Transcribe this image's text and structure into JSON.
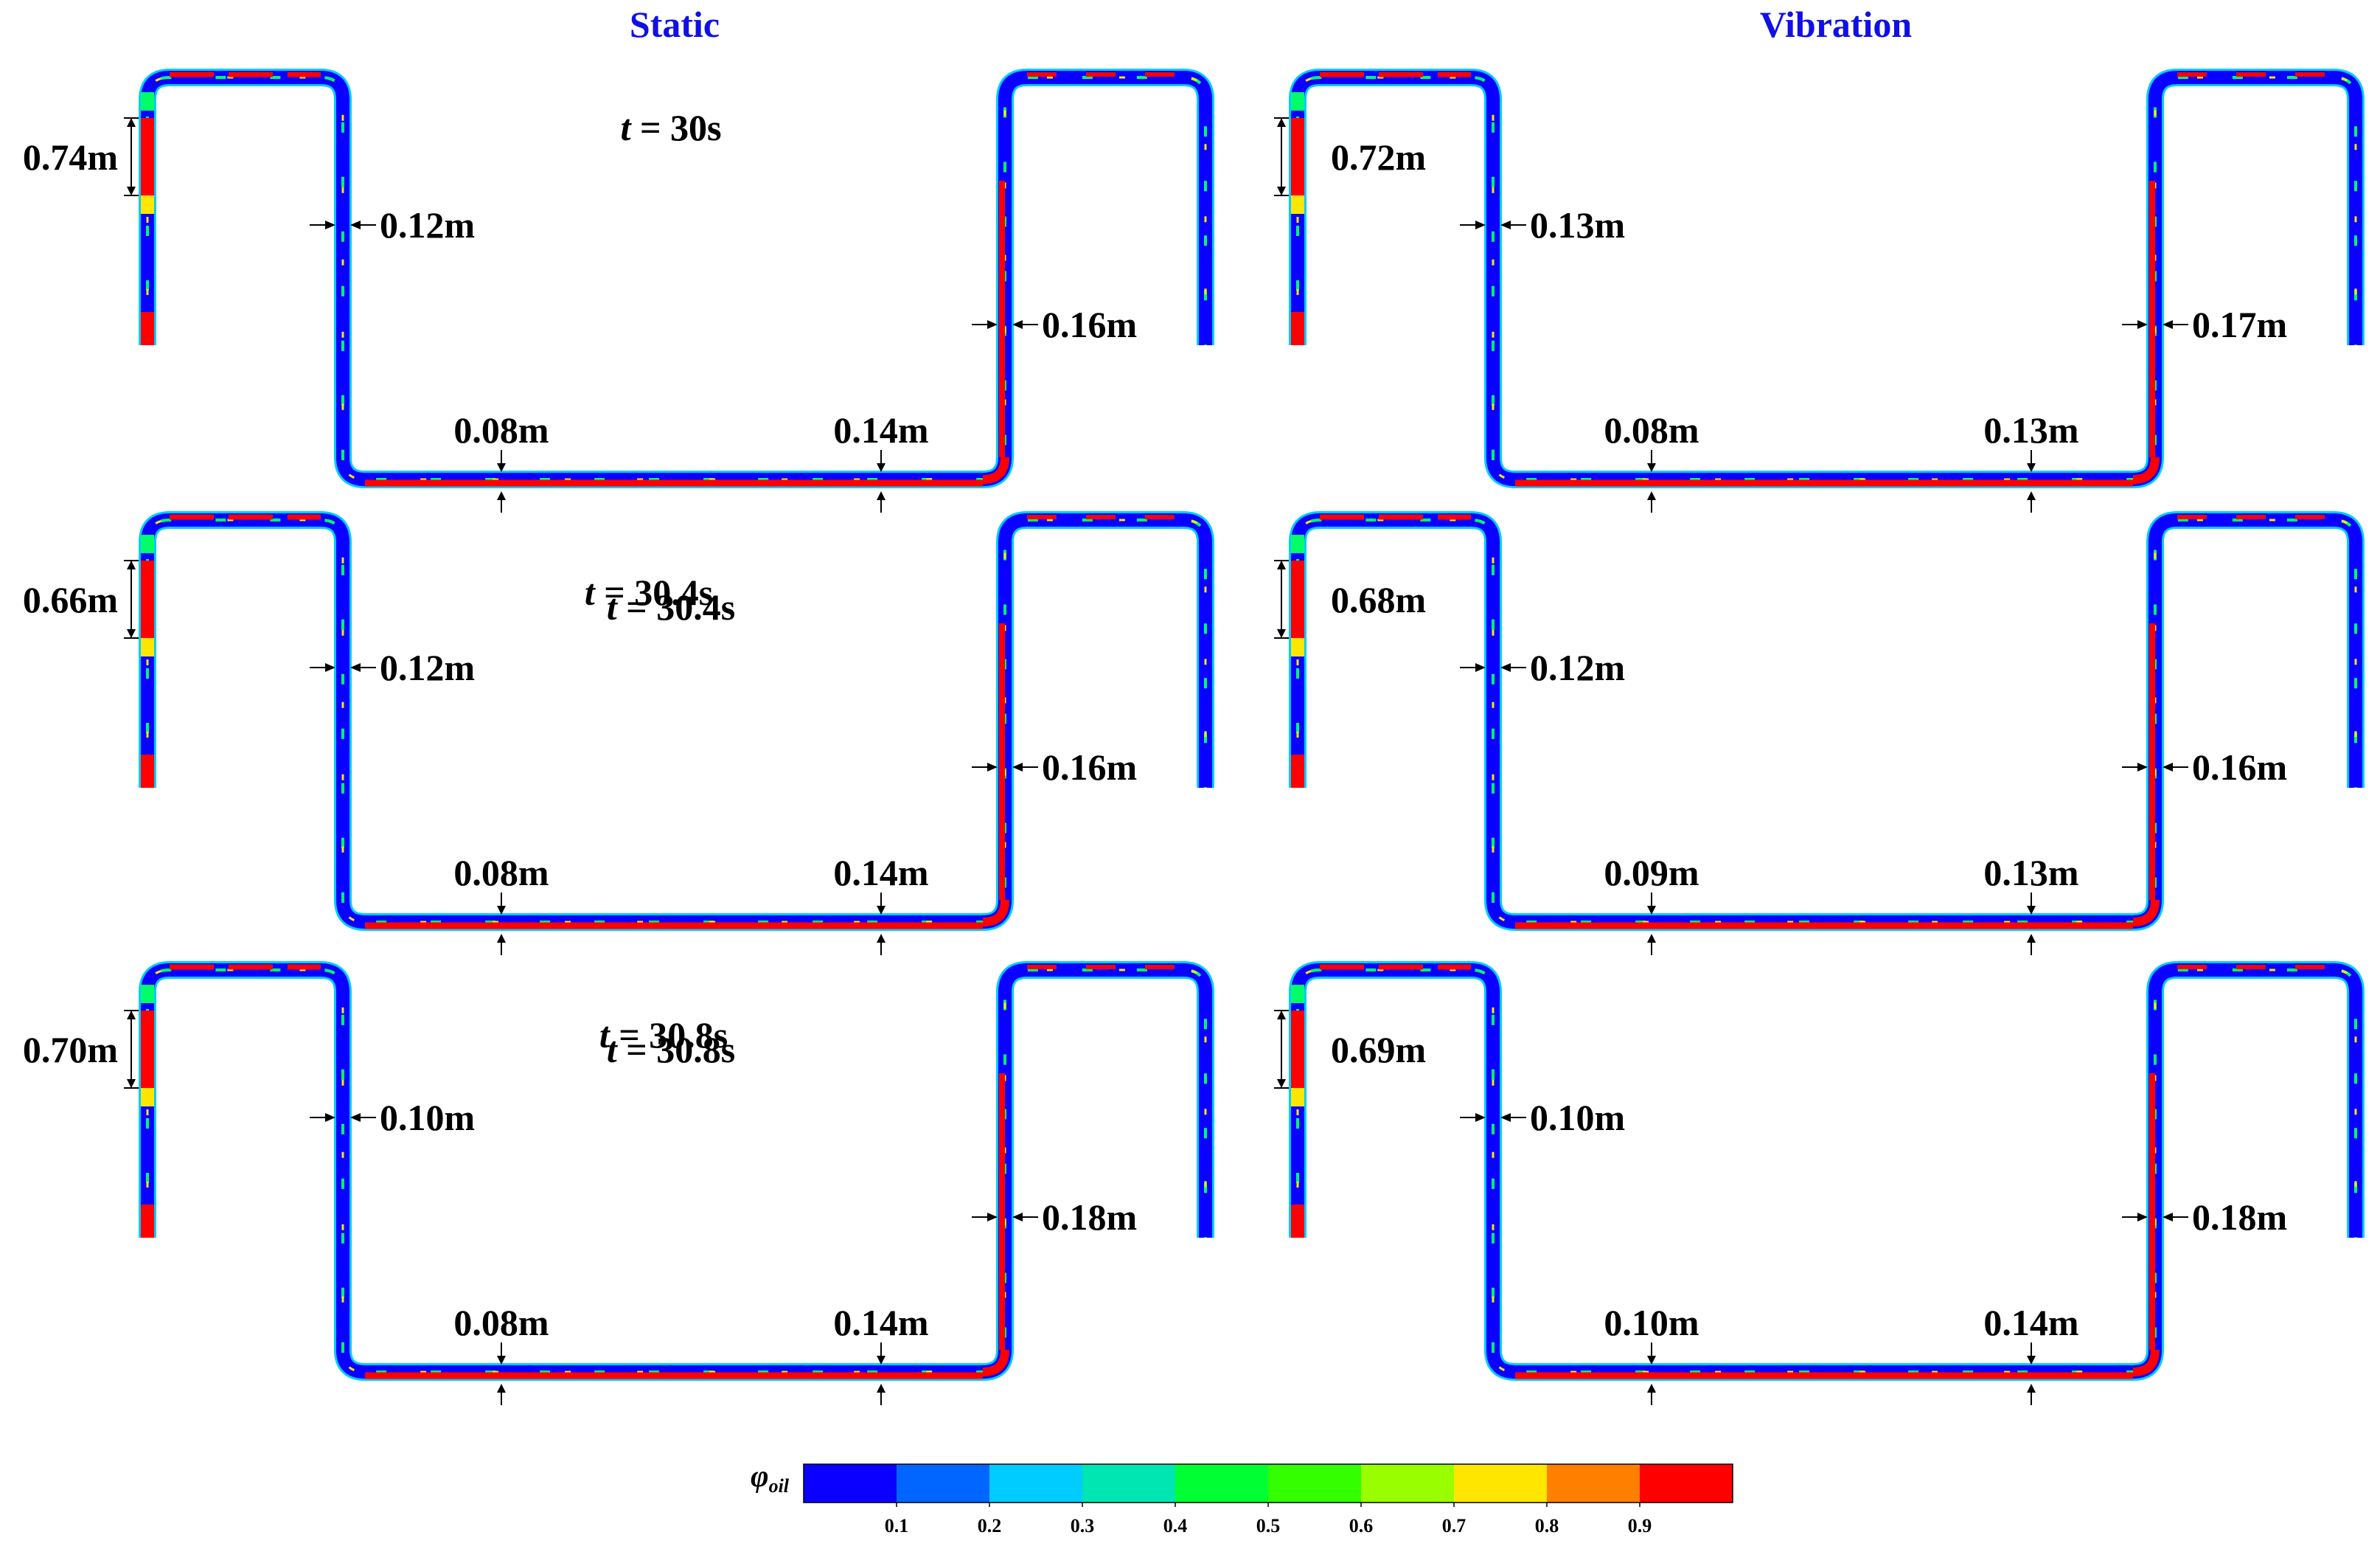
{
  "columns": [
    "Static",
    "Vibration"
  ],
  "panels": [
    {
      "column": "Static",
      "time": "30s",
      "slug_length": "0.74m",
      "riser_film": "0.12m",
      "bottom_film_left": "0.08m",
      "bottom_film_right": "0.14m",
      "right_riser_film": "0.16m"
    },
    {
      "column": "Vibration",
      "time": "30s",
      "slug_length": "0.72m",
      "riser_film": "0.13m",
      "bottom_film_left": "0.08m",
      "bottom_film_right": "0.13m",
      "right_riser_film": "0.17m"
    },
    {
      "column": "Static",
      "time": "30.4s",
      "slug_length": "0.66m",
      "riser_film": "0.12m",
      "bottom_film_left": "0.08m",
      "bottom_film_right": "0.14m",
      "right_riser_film": "0.16m"
    },
    {
      "column": "Vibration",
      "time": "30.4s",
      "slug_length": "0.68m",
      "riser_film": "0.12m",
      "bottom_film_left": "0.09m",
      "bottom_film_right": "0.13m",
      "right_riser_film": "0.16m"
    },
    {
      "column": "Static",
      "time": "30.8s",
      "slug_length": "0.70m",
      "riser_film": "0.10m",
      "bottom_film_left": "0.08m",
      "bottom_film_right": "0.14m",
      "right_riser_film": "0.18m"
    },
    {
      "column": "Vibration",
      "time": "30.8s",
      "slug_length": "0.69m",
      "riser_film": "0.10m",
      "bottom_film_left": "0.10m",
      "bottom_film_right": "0.14m",
      "right_riser_film": "0.18m"
    }
  ],
  "time_prefix": "t",
  "time_equals": " = ",
  "colorbar": {
    "symbol": "φ",
    "subscript": "oil",
    "ticks": [
      "0.1",
      "0.2",
      "0.3",
      "0.4",
      "0.5",
      "0.6",
      "0.7",
      "0.8",
      "0.9"
    ],
    "colors": [
      "#0a00ff",
      "#0066ff",
      "#00ccff",
      "#00e6b3",
      "#00ff33",
      "#33ff00",
      "#99ff00",
      "#ffe600",
      "#ff7f00",
      "#ff0000"
    ]
  },
  "phase_colors": {
    "oil": "#ff0000",
    "water": "#0a00ff",
    "interface_green": "#00ff66",
    "interface_yellow": "#ffe600",
    "interface_cyan": "#00ccff"
  }
}
